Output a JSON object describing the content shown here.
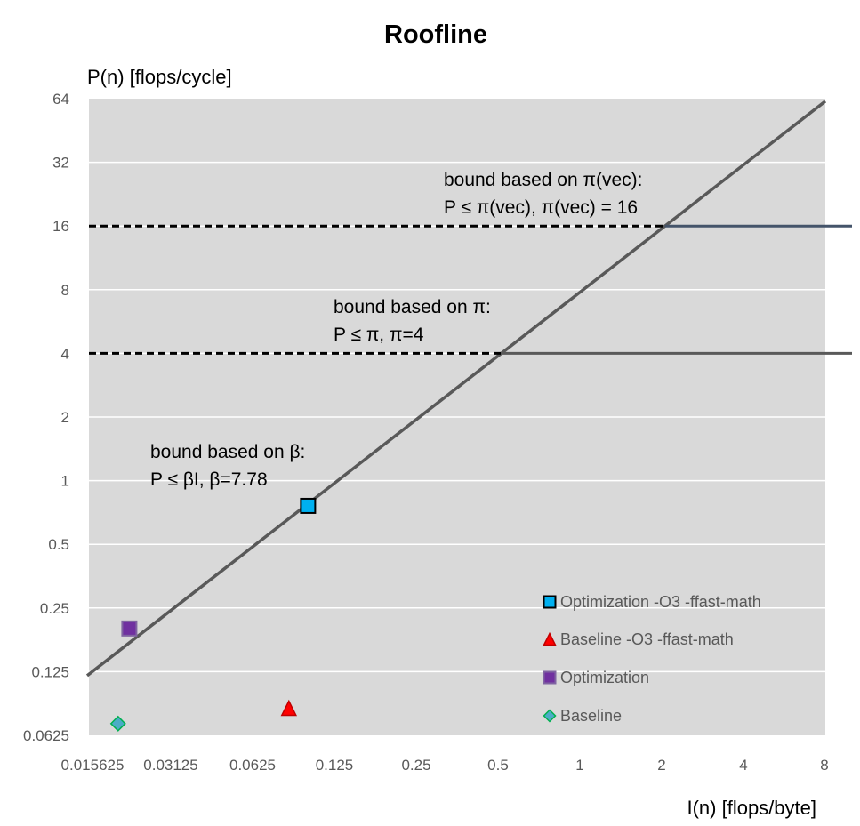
{
  "chart_data": {
    "type": "scatter",
    "title": "Roofline",
    "xlabel": "I(n) [flops/byte]",
    "ylabel": "P(n) [flops/cycle]",
    "x_scale": "log2",
    "y_scale": "log2",
    "xlim": [
      0.015625,
      8
    ],
    "ylim": [
      0.0625,
      64
    ],
    "x_ticks": [
      "0.015625",
      "0.03125",
      "0.0625",
      "0.125",
      "0.25",
      "0.5",
      "1",
      "2",
      "4",
      "8"
    ],
    "x_tick_values": [
      0.015625,
      0.03125,
      0.0625,
      0.125,
      0.25,
      0.5,
      1,
      2,
      4,
      8
    ],
    "y_ticks": [
      "0.0625",
      "0.125",
      "0.25",
      "0.5",
      "1",
      "2",
      "4",
      "8",
      "16",
      "32",
      "64"
    ],
    "y_tick_values": [
      0.0625,
      0.125,
      0.25,
      0.5,
      1,
      2,
      4,
      8,
      16,
      32,
      64
    ],
    "grid": "horizontal",
    "plot_background": "#d9d9d9",
    "legend_position": "bottom-right",
    "bounds": [
      {
        "type": "memory",
        "beta": 7.78,
        "color": "#595959"
      },
      {
        "type": "compute",
        "pi": 4,
        "color": "#595959"
      },
      {
        "type": "compute",
        "pi": 16,
        "color": "#44546a"
      }
    ],
    "annotations": [
      {
        "lines": [
          "bound based on π(vec):",
          "P ≤ π(vec), π(vec) = 16"
        ]
      },
      {
        "lines": [
          "bound based on π:",
          "P ≤ π, π=4"
        ]
      },
      {
        "lines": [
          "bound based on β:",
          "P ≤ βI,  β=7.78"
        ]
      }
    ],
    "series": [
      {
        "name": "Optimization -O3 -ffast-math",
        "marker": "square",
        "color": "#00b0f0",
        "edge": "#000000",
        "points": [
          [
            0.1,
            0.76
          ]
        ]
      },
      {
        "name": "Baseline -O3 -ffast-math",
        "marker": "triangle",
        "color": "#ff0000",
        "edge": "#c00000",
        "points": [
          [
            0.085,
            0.084
          ]
        ]
      },
      {
        "name": "Optimization",
        "marker": "square",
        "color": "#7030a0",
        "edge": "#8064a2",
        "points": [
          [
            0.022,
            0.2
          ]
        ]
      },
      {
        "name": "Baseline",
        "marker": "diamond",
        "color": "#4bacc6",
        "edge": "#00b050",
        "points": [
          [
            0.02,
            0.071
          ]
        ]
      }
    ]
  }
}
